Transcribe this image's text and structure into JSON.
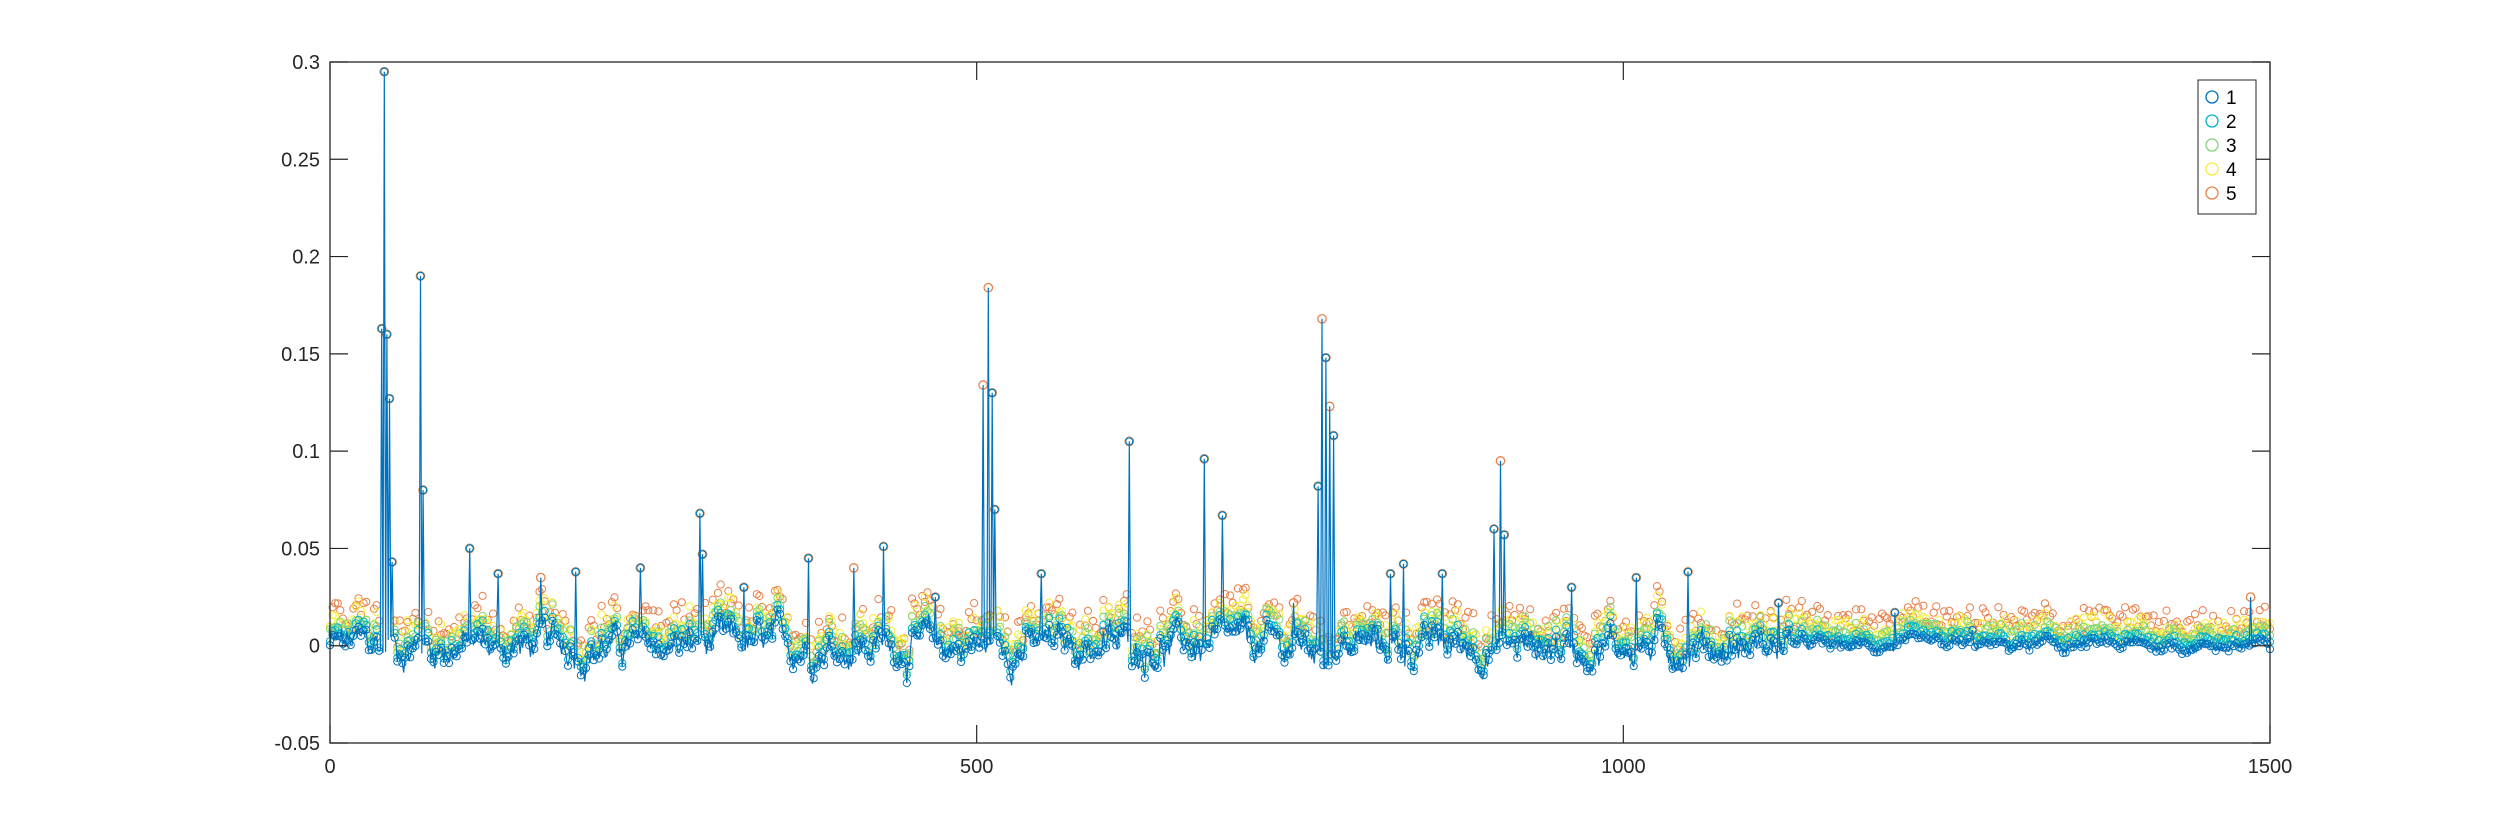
{
  "chart_data": {
    "type": "scatter",
    "title": "",
    "xlabel": "",
    "ylabel": "",
    "xlim": [
      0,
      1500
    ],
    "ylim": [
      -0.05,
      0.3
    ],
    "xticks": [
      0,
      500,
      1000,
      1500
    ],
    "xtick_labels": [
      "0",
      "500",
      "1000",
      "1500"
    ],
    "yticks": [
      -0.05,
      0,
      0.05,
      0.1,
      0.15,
      0.2,
      0.25,
      0.3
    ],
    "ytick_labels": [
      "-0.05",
      "0",
      "0.05",
      "0.1",
      "0.15",
      "0.2",
      "0.25",
      "0.3"
    ],
    "grid": false,
    "legend_position": "top-right",
    "markers": "open circles",
    "series": [
      {
        "name": "1",
        "color": "#0072BD",
        "offset": 0.0
      },
      {
        "name": "2",
        "color": "#00B4C8",
        "offset": 0.003
      },
      {
        "name": "3",
        "color": "#7FD47A",
        "offset": 0.006
      },
      {
        "name": "4",
        "color": "#F5EE3A",
        "offset": 0.009
      },
      {
        "name": "5",
        "color": "#E8804A",
        "offset": 0.012
      }
    ],
    "peaks": [
      [
        40,
        0.163
      ],
      [
        42,
        0.295
      ],
      [
        44,
        0.16
      ],
      [
        46,
        0.127
      ],
      [
        48,
        0.043
      ],
      [
        70,
        0.19
      ],
      [
        72,
        0.08
      ],
      [
        108,
        0.05
      ],
      [
        130,
        0.037
      ],
      [
        163,
        0.035
      ],
      [
        190,
        0.038
      ],
      [
        240,
        0.04
      ],
      [
        286,
        0.068
      ],
      [
        288,
        0.047
      ],
      [
        320,
        0.03
      ],
      [
        370,
        0.045
      ],
      [
        405,
        0.04
      ],
      [
        428,
        0.051
      ],
      [
        468,
        0.025
      ],
      [
        505,
        0.134
      ],
      [
        509,
        0.184
      ],
      [
        512,
        0.13
      ],
      [
        514,
        0.07
      ],
      [
        550,
        0.037
      ],
      [
        618,
        0.105
      ],
      [
        676,
        0.096
      ],
      [
        690,
        0.067
      ],
      [
        745,
        0.022
      ],
      [
        764,
        0.082
      ],
      [
        767,
        0.168
      ],
      [
        770,
        0.148
      ],
      [
        773,
        0.123
      ],
      [
        776,
        0.108
      ],
      [
        820,
        0.037
      ],
      [
        830,
        0.042
      ],
      [
        860,
        0.037
      ],
      [
        900,
        0.06
      ],
      [
        905,
        0.095
      ],
      [
        908,
        0.057
      ],
      [
        960,
        0.03
      ],
      [
        1010,
        0.035
      ],
      [
        1050,
        0.038
      ],
      [
        1120,
        0.022
      ],
      [
        1210,
        0.017
      ],
      [
        1270,
        0.008
      ],
      [
        1485,
        0.025
      ]
    ],
    "baseline_noise": [
      {
        "x_range": [
          0,
          1130
        ],
        "amplitude": 0.012
      },
      {
        "x_range": [
          1130,
          1500
        ],
        "amplitude": 0.004
      }
    ]
  }
}
